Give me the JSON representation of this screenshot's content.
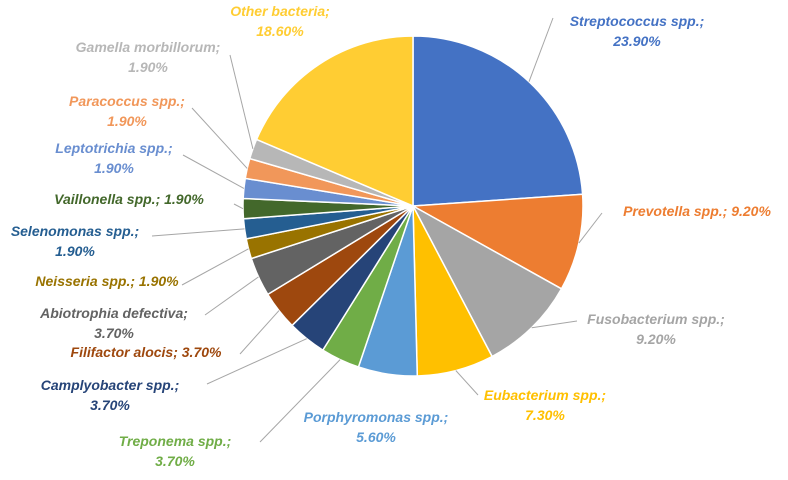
{
  "chart_data": {
    "type": "pie",
    "slices": [
      {
        "label": "Streptococcus spp.;",
        "value": 23.9,
        "display": "23.90%",
        "color": "#4472C4"
      },
      {
        "label": "Prevotella spp.;",
        "value": 9.2,
        "display": "9.20%",
        "color": "#ED7D31"
      },
      {
        "label": "Fusobacterium spp.;",
        "value": 9.2,
        "display": "9.20%",
        "color": "#A5A5A5"
      },
      {
        "label": "Eubacterium spp.;",
        "value": 7.3,
        "display": "7.30%",
        "color": "#FFC000"
      },
      {
        "label": "Porphyromonas spp.;",
        "value": 5.6,
        "display": "5.60%",
        "color": "#5B9BD5"
      },
      {
        "label": "Treponema spp.;",
        "value": 3.7,
        "display": "3.70%",
        "color": "#70AD47"
      },
      {
        "label": "Camplyobacter spp.;",
        "value": 3.7,
        "display": "3.70%",
        "color": "#264478"
      },
      {
        "label": "Filifactor alocis;",
        "value": 3.7,
        "display": "3.70%",
        "color": "#9E480E"
      },
      {
        "label": "Abiotrophia defectiva;",
        "value": 3.7,
        "display": "3.70%",
        "color": "#636363"
      },
      {
        "label": "Neisseria spp.;",
        "value": 1.9,
        "display": "1.90%",
        "color": "#997300"
      },
      {
        "label": "Selenomonas spp.;",
        "value": 1.9,
        "display": "1.90%",
        "color": "#255E91"
      },
      {
        "label": "Vaillonella spp.;",
        "value": 1.9,
        "display": "1.90%",
        "color": "#43682B"
      },
      {
        "label": "Leptotrichia spp.;",
        "value": 1.9,
        "display": "1.90%",
        "color": "#698ED0"
      },
      {
        "label": "Paracoccus spp.;",
        "value": 1.9,
        "display": "1.90%",
        "color": "#F1975A"
      },
      {
        "label": "Gamella morbillorum;",
        "value": 1.9,
        "display": "1.90%",
        "color": "#B7B7B7"
      },
      {
        "label": "Other bacteria;",
        "value": 18.6,
        "display": "18.60%",
        "color": "#FFCD33"
      }
    ]
  }
}
